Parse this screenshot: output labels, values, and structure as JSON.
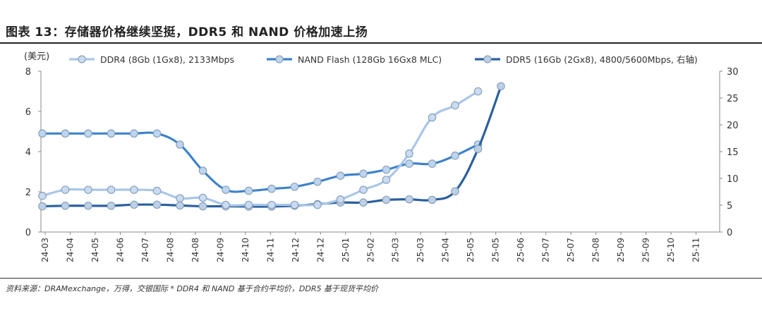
{
  "title": "图表 13：存储器价格继续坚挺，DDR5 和 NAND 价格加速上扬",
  "source": "资料来源：DRAMexchange，万得，交银国际   * DDR4 和 NAND 基于合约平均价，DDR5 基于现货平均价",
  "chart_data": {
    "type": "line",
    "ylabel": "(美元)",
    "ylim": [
      0,
      8
    ],
    "y_ticks": [
      "0",
      "2",
      "4",
      "6",
      "8"
    ],
    "y2lim": [
      0,
      30
    ],
    "y2_ticks": [
      "0",
      "5",
      "10",
      "15",
      "20",
      "25",
      "30"
    ],
    "categories": [
      "24-03",
      "24-04",
      "24-05",
      "24-06",
      "24-07",
      "24-08",
      "24-08",
      "24-09",
      "24-10",
      "24-11",
      "24-12",
      "24-12",
      "25-01",
      "25-02",
      "25-03",
      "25-03",
      "25-04",
      "25-05",
      "25-05",
      "25-06",
      "25-07",
      "25-07",
      "25-08",
      "25-09",
      "25-09",
      "25-10",
      "25-11"
    ],
    "series": [
      {
        "name": "DDR4 (8Gb (1Gx8), 2133Mbps",
        "axis": "left",
        "color": "#a9c6e8",
        "marker_fill": "#c9dcf2",
        "points": [
          [
            0,
            1.8
          ],
          [
            1,
            2.1
          ],
          [
            2,
            2.1
          ],
          [
            3,
            2.1
          ],
          [
            4,
            2.1
          ],
          [
            5,
            2.05
          ],
          [
            6,
            1.68
          ],
          [
            7,
            1.7
          ],
          [
            8,
            1.35
          ],
          [
            9,
            1.35
          ],
          [
            10,
            1.35
          ],
          [
            11,
            1.35
          ],
          [
            12,
            1.35
          ],
          [
            13,
            1.62
          ],
          [
            14,
            2.1
          ],
          [
            15,
            2.6
          ],
          [
            16,
            3.9
          ],
          [
            17,
            5.7
          ],
          [
            18,
            6.3
          ],
          [
            19,
            7.0
          ]
        ]
      },
      {
        "name": "NAND Flash (128Gb 16Gx8 MLC)",
        "axis": "left",
        "color": "#3e82cc",
        "marker_fill": "#bcd5f0",
        "points": [
          [
            0,
            4.9
          ],
          [
            1,
            4.9
          ],
          [
            2,
            4.9
          ],
          [
            3,
            4.9
          ],
          [
            4,
            4.9
          ],
          [
            5,
            4.9
          ],
          [
            6,
            4.35
          ],
          [
            7,
            3.05
          ],
          [
            8,
            2.1
          ],
          [
            9,
            2.05
          ],
          [
            10,
            2.15
          ],
          [
            11,
            2.25
          ],
          [
            12,
            2.5
          ],
          [
            13,
            2.8
          ],
          [
            14,
            2.9
          ],
          [
            15,
            3.1
          ],
          [
            16,
            3.4
          ],
          [
            17,
            3.4
          ],
          [
            18,
            3.8
          ],
          [
            19,
            4.35
          ]
        ]
      },
      {
        "name": "DDR5 (16Gb (2Gx8), 4800/5600Mbps, 右轴)",
        "axis": "right",
        "color": "#2b5f9f",
        "marker_fill": "#bcd0e8",
        "points": [
          [
            0,
            4.8
          ],
          [
            1,
            4.9
          ],
          [
            2,
            4.9
          ],
          [
            3,
            4.9
          ],
          [
            4,
            5.1
          ],
          [
            5,
            5.1
          ],
          [
            6,
            4.95
          ],
          [
            7,
            4.8
          ],
          [
            8,
            4.8
          ],
          [
            9,
            4.75
          ],
          [
            10,
            4.75
          ],
          [
            11,
            4.9
          ],
          [
            12,
            5.2
          ],
          [
            13,
            5.5
          ],
          [
            14,
            5.5
          ],
          [
            15,
            6.0
          ],
          [
            16,
            6.1
          ],
          [
            17,
            6.0
          ],
          [
            18,
            7.6
          ],
          [
            19,
            15.5
          ],
          [
            20,
            27.2
          ]
        ]
      }
    ],
    "legend_position": "top"
  }
}
